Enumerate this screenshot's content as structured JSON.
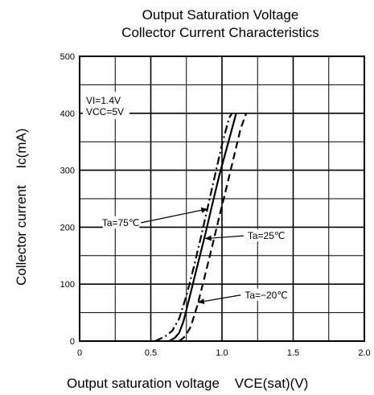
{
  "chart_data": {
    "type": "line",
    "title_line1": "Output Saturation Voltage",
    "title_line2": "Collector Current Characteristics",
    "xlabel": "Output saturation voltage",
    "xlabel_sym": "VCE(sat)(V)",
    "ylabel": "Collector current",
    "ylabel_sym": "Ic(mA)",
    "xlim": [
      0,
      2.0
    ],
    "ylim": [
      0,
      500
    ],
    "x_ticks": [
      0,
      0.5,
      1.0,
      1.5,
      2.0
    ],
    "x_tick_labels": [
      "0",
      "0.5",
      "1.0",
      "1.5",
      "2.0"
    ],
    "y_ticks": [
      0,
      100,
      200,
      300,
      400,
      500
    ],
    "y_tick_labels": [
      "0",
      "100",
      "200",
      "300",
      "400",
      "500"
    ],
    "grid": true,
    "conditions": [
      "VI=1.4V",
      "VCC=5V"
    ],
    "series": [
      {
        "name": "Ta=75℃",
        "style": "dashdot",
        "points": [
          [
            0.53,
            0
          ],
          [
            0.6,
            8
          ],
          [
            0.65,
            18
          ],
          [
            0.7,
            40
          ],
          [
            0.75,
            80
          ],
          [
            0.8,
            128
          ],
          [
            0.85,
            180
          ],
          [
            0.9,
            235
          ],
          [
            0.95,
            290
          ],
          [
            1.0,
            345
          ],
          [
            1.05,
            392
          ],
          [
            1.07,
            400
          ]
        ]
      },
      {
        "name": "Ta=25℃",
        "style": "solid",
        "points": [
          [
            0.63,
            0
          ],
          [
            0.67,
            6
          ],
          [
            0.7,
            15
          ],
          [
            0.73,
            35
          ],
          [
            0.78,
            85
          ],
          [
            0.83,
            135
          ],
          [
            0.88,
            185
          ],
          [
            0.93,
            238
          ],
          [
            0.98,
            290
          ],
          [
            1.04,
            345
          ],
          [
            1.1,
            400
          ]
        ]
      },
      {
        "name": "Ta=−20℃",
        "style": "dashed",
        "points": [
          [
            0.7,
            0
          ],
          [
            0.74,
            8
          ],
          [
            0.78,
            25
          ],
          [
            0.83,
            65
          ],
          [
            0.88,
            115
          ],
          [
            0.93,
            165
          ],
          [
            0.98,
            218
          ],
          [
            1.03,
            268
          ],
          [
            1.08,
            320
          ],
          [
            1.13,
            372
          ],
          [
            1.17,
            400
          ]
        ]
      }
    ],
    "annotations": [
      {
        "series": "Ta=75℃",
        "label": "Ta=75℃",
        "label_at": [
          0.42,
          205
        ],
        "points_to": [
          0.9,
          232
        ]
      },
      {
        "series": "Ta=25℃",
        "label": "Ta=25℃",
        "label_at": [
          1.18,
          182
        ],
        "points_to": [
          0.88,
          180
        ]
      },
      {
        "series": "Ta=−20℃",
        "label": "Ta=−20℃",
        "label_at": [
          1.16,
          78
        ],
        "points_to": [
          0.83,
          68
        ]
      }
    ]
  }
}
